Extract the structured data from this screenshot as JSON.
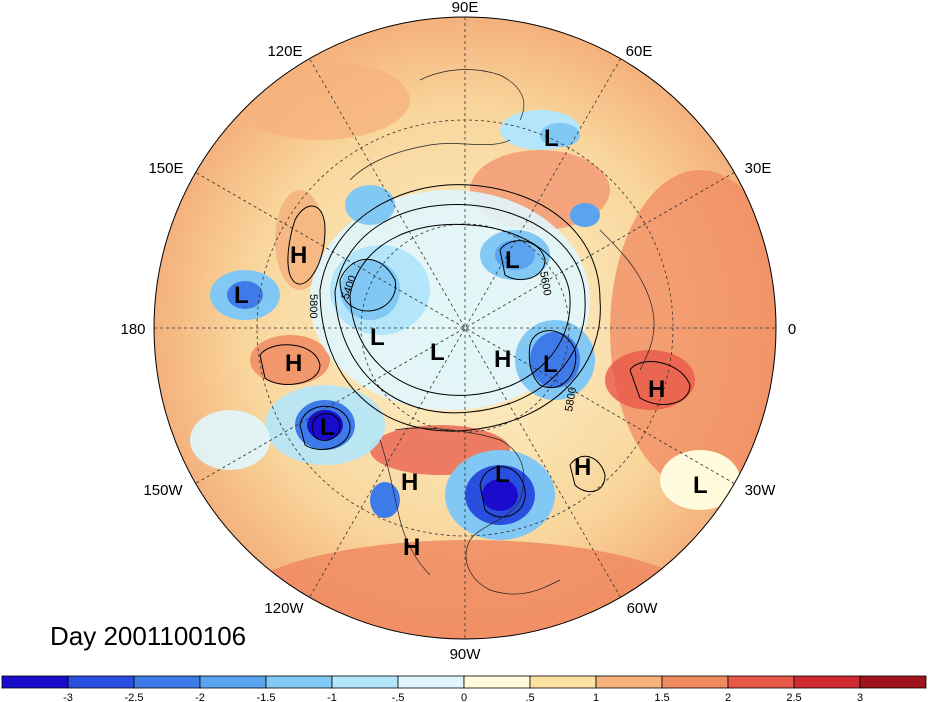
{
  "title": "Day 2001100106",
  "longitude_labels": [
    "90E",
    "60E",
    "30E",
    "0",
    "30W",
    "60W",
    "90W",
    "120W",
    "150W",
    "180",
    "150E",
    "120E"
  ],
  "contour_labels": [
    "5400",
    "5600",
    "5800",
    "5800"
  ],
  "pressure_centers": [
    {
      "label": "L"
    },
    {
      "label": "L"
    },
    {
      "label": "L"
    },
    {
      "label": "L"
    },
    {
      "label": "L"
    },
    {
      "label": "L"
    },
    {
      "label": "L"
    },
    {
      "label": "L"
    },
    {
      "label": "L"
    },
    {
      "label": "H"
    },
    {
      "label": "H"
    },
    {
      "label": "H"
    },
    {
      "label": "H"
    },
    {
      "label": "H"
    },
    {
      "label": "H"
    },
    {
      "label": "H"
    }
  ],
  "colorbar": {
    "ticks": [
      "-3",
      "-2.5",
      "-2",
      "-1.5",
      "-1",
      "-.5",
      "0",
      ".5",
      "1",
      "1.5",
      "2",
      "2.5",
      "3"
    ],
    "colors": [
      "#1a0ccc",
      "#2a4fe0",
      "#3f7be8",
      "#5aa3ef",
      "#82c8f4",
      "#b3e6fa",
      "#e0f6fd",
      "#fffbdc",
      "#fce2a2",
      "#f6b37e",
      "#f08a61",
      "#e85848",
      "#cf2a2f",
      "#a0121c"
    ]
  }
}
